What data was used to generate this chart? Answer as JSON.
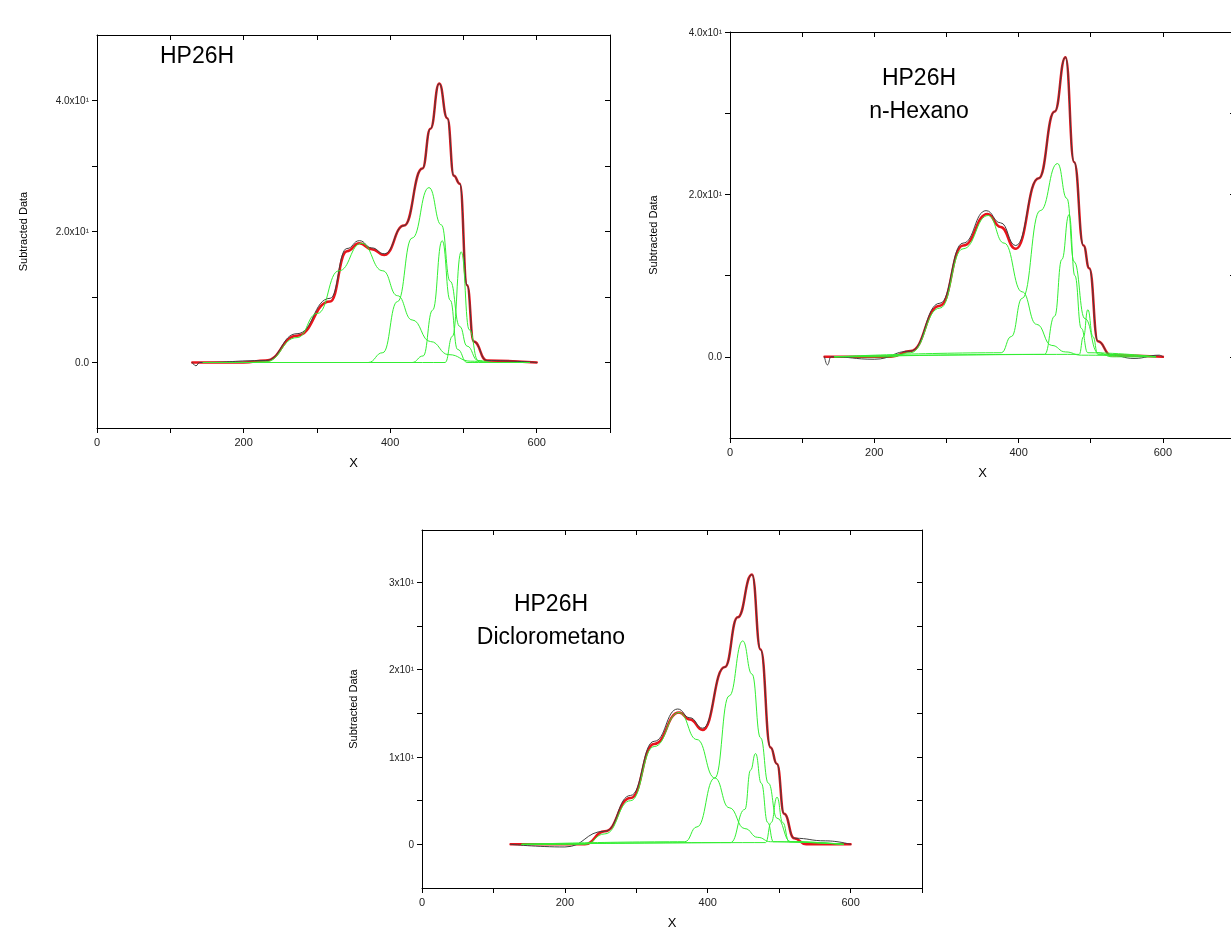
{
  "chart_data": [
    {
      "type": "line",
      "title": "HP26H",
      "xlabel": "X",
      "ylabel": "Subtracted Data",
      "xlim": [
        0,
        700
      ],
      "ylim": [
        -10,
        50
      ],
      "xticks": [
        0,
        {
          "value": 100,
          "label": null
        },
        200,
        {
          "value": 300,
          "label": null
        },
        400,
        {
          "value": 500,
          "label": null
        },
        600,
        {
          "value": 700,
          "label": null
        }
      ],
      "yticks": [
        {
          "value": 0,
          "label": "0.0"
        },
        {
          "value": 10,
          "label": null
        },
        {
          "value": 20,
          "label": "2.0x10¹"
        },
        {
          "value": 30,
          "label": null
        },
        {
          "value": 40,
          "label": "4.0x10¹"
        }
      ],
      "series": [
        {
          "color": "#e8141c",
          "x": [
            130,
            200,
            230,
            273,
            318,
            341,
            358,
            375,
            392,
            419,
            444,
            455,
            467,
            478,
            487,
            495,
            505,
            514,
            532,
            600
          ],
          "values": [
            0,
            0,
            0.3,
            4.1,
            9.3,
            17,
            18.2,
            17.3,
            16.4,
            20.9,
            29.6,
            35.7,
            42.6,
            37.3,
            28.5,
            27.3,
            11.8,
            3.2,
            0.3,
            0
          ]
        },
        {
          "color": "#404040",
          "x": [
            130,
            135,
            140,
            230,
            273,
            318,
            341,
            358,
            375,
            392,
            419,
            444,
            455,
            467,
            478,
            487,
            495,
            505,
            514,
            532,
            600
          ],
          "values": [
            0,
            -0.5,
            0,
            0.3,
            4.4,
            9.8,
            17.4,
            18.6,
            17.5,
            16.6,
            20.9,
            29.6,
            35.7,
            42.6,
            37.3,
            28.5,
            27.3,
            11.8,
            3.2,
            0.3,
            0
          ]
        },
        {
          "color": "#33ee33",
          "x": [
            145,
            200,
            230,
            273,
            301,
            330,
            361,
            390,
            410,
            430,
            455,
            480,
            510,
            540,
            590
          ],
          "values": [
            0,
            0,
            0.1,
            3.8,
            7.5,
            14,
            18.2,
            14,
            10.2,
            6.5,
            3.2,
            1.2,
            0.2,
            0,
            0
          ]
        },
        {
          "color": "#33ee33",
          "x": [
            145,
            370,
            390,
            410,
            430,
            453,
            470,
            482,
            495,
            505,
            520,
            540,
            590
          ],
          "values": [
            0,
            0,
            1.5,
            9.3,
            19,
            26.7,
            21,
            12.4,
            5.5,
            2.5,
            0.3,
            0,
            0
          ]
        },
        {
          "color": "#33ee33",
          "x": [
            145,
            430,
            445,
            458,
            471,
            482,
            492,
            505,
            590
          ],
          "values": [
            0,
            0,
            1,
            8,
            18.6,
            9.5,
            2,
            0,
            0
          ]
        },
        {
          "color": "#33ee33",
          "x": [
            145,
            475,
            485,
            497,
            508,
            520,
            530,
            590
          ],
          "values": [
            0,
            0,
            4,
            16.9,
            5,
            0.3,
            0,
            0
          ]
        }
      ]
    },
    {
      "type": "line",
      "title": "HP26H",
      "subtitle": "n-Hexano",
      "xlabel": "X",
      "ylabel": "Subtracted Data",
      "xlim": [
        0,
        700
      ],
      "ylim": [
        -10,
        40
      ],
      "xticks": [
        0,
        {
          "value": 100,
          "label": null
        },
        200,
        {
          "value": 300,
          "label": null
        },
        400,
        {
          "value": 500,
          "label": null
        },
        600,
        {
          "value": 700,
          "label": null
        }
      ],
      "yticks": [
        {
          "value": 0,
          "label": "0.0"
        },
        {
          "value": 10,
          "label": null
        },
        {
          "value": 20,
          "label": "2.0x10¹"
        },
        {
          "value": 30,
          "label": null
        },
        {
          "value": 40,
          "label": "4.0x10¹"
        }
      ],
      "series": [
        {
          "color": "#e8141c",
          "x": [
            131,
            223,
            250,
            291,
            323,
            357,
            375,
            396,
            428,
            450,
            465,
            477,
            490,
            498,
            510,
            528,
            600
          ],
          "values": [
            0,
            0,
            0.7,
            6.3,
            13.7,
            17.6,
            16,
            13.3,
            22,
            30.2,
            36.9,
            24,
            13.7,
            10.9,
            1.9,
            0.2,
            0
          ]
        },
        {
          "color": "#404040",
          "x": [
            131,
            135,
            140,
            200,
            250,
            291,
            323,
            355,
            375,
            396,
            428,
            450,
            465,
            477,
            490,
            498,
            510,
            528,
            560,
            595,
            600
          ],
          "values": [
            0,
            -1,
            0,
            -0.3,
            0.7,
            6.6,
            14,
            18,
            16.5,
            13.7,
            22,
            30.2,
            36.9,
            24,
            13.7,
            10.9,
            1.9,
            0.2,
            -0.2,
            0.2,
            0
          ]
        },
        {
          "color": "#33ee33",
          "x": [
            145,
            223,
            250,
            291,
            323,
            358,
            380,
            405,
            425,
            446,
            465,
            487,
            590
          ],
          "values": [
            0,
            0,
            0.5,
            6,
            13.3,
            17.4,
            14,
            8,
            4,
            1.4,
            0.6,
            0.2,
            0
          ]
        },
        {
          "color": "#33ee33",
          "x": [
            145,
            376,
            390,
            405,
            430,
            454,
            467,
            477,
            492,
            510,
            530,
            590
          ],
          "values": [
            0,
            0.5,
            2.5,
            7.2,
            18,
            23.8,
            19.5,
            11.7,
            4.7,
            0.5,
            0,
            0
          ]
        },
        {
          "color": "#33ee33",
          "x": [
            145,
            436,
            450,
            460,
            470,
            478,
            487,
            496,
            590
          ],
          "values": [
            0,
            0.3,
            5,
            12,
            17.5,
            10,
            3.5,
            0.5,
            0
          ]
        },
        {
          "color": "#33ee33",
          "x": [
            145,
            484,
            490,
            496,
            503,
            510,
            590
          ],
          "values": [
            0,
            0.3,
            2.5,
            5.8,
            2.5,
            0.3,
            0
          ]
        }
      ]
    },
    {
      "type": "line",
      "title": "HP26H",
      "subtitle": "Diclorometano",
      "xlabel": "X",
      "ylabel": "Subtracted Data",
      "xlim": [
        0,
        700
      ],
      "ylim": [
        -5,
        36
      ],
      "xticks": [
        0,
        {
          "value": 100,
          "label": null
        },
        200,
        {
          "value": 300,
          "label": null
        },
        400,
        {
          "value": 500,
          "label": null
        },
        600,
        {
          "value": 700,
          "label": null
        }
      ],
      "yticks": [
        0,
        {
          "value": 5,
          "label": null
        },
        {
          "value": 10,
          "label": "1x10¹"
        },
        {
          "value": 15,
          "label": null
        },
        {
          "value": 20,
          "label": "2x10¹"
        },
        {
          "value": 25,
          "label": null
        },
        {
          "value": 30,
          "label": "3x10¹"
        }
      ],
      "series": [
        {
          "color": "#e8141c",
          "x": [
            124,
            228,
            256,
            292,
            325,
            360,
            375,
            393,
            424,
            442,
            462,
            474,
            488,
            497,
            507,
            521,
            538,
            600
          ],
          "values": [
            0,
            0,
            1.5,
            5.3,
            11.5,
            15.1,
            14.3,
            13.1,
            20.3,
            26,
            30.9,
            22.3,
            11.1,
            9.2,
            3.5,
            0.7,
            0,
            0
          ]
        },
        {
          "color": "#404040",
          "x": [
            124,
            200,
            256,
            292,
            325,
            358,
            375,
            393,
            424,
            442,
            462,
            474,
            488,
            497,
            507,
            521,
            565,
            600
          ],
          "values": [
            0,
            -0.3,
            1.5,
            5.6,
            11.8,
            15.5,
            14.5,
            13.3,
            20.3,
            26,
            30.9,
            22.3,
            11.1,
            9.2,
            3.5,
            0.7,
            0.4,
            0
          ]
        },
        {
          "color": "#33ee33",
          "x": [
            140,
            228,
            256,
            292,
            325,
            360,
            385,
            410,
            430,
            452,
            470,
            488,
            590
          ],
          "values": [
            0,
            0,
            1.2,
            5,
            11.2,
            15.1,
            12,
            7.6,
            4.2,
            1.8,
            0.8,
            0.3,
            0
          ]
        },
        {
          "color": "#33ee33",
          "x": [
            140,
            368,
            385,
            410,
            430,
            449,
            462,
            474,
            485,
            497,
            516,
            590
          ],
          "values": [
            0,
            0.3,
            2,
            7.6,
            17,
            23.3,
            19.5,
            12.2,
            7,
            3,
            0.3,
            0
          ]
        },
        {
          "color": "#33ee33",
          "x": [
            140,
            432,
            452,
            460,
            467,
            475,
            484,
            492,
            590
          ],
          "values": [
            0,
            0.2,
            4,
            8.5,
            10.4,
            7,
            2.5,
            0.3,
            0
          ]
        },
        {
          "color": "#33ee33",
          "x": [
            140,
            481,
            489,
            497,
            505,
            514,
            590
          ],
          "values": [
            0,
            0.2,
            2.5,
            5.4,
            2.5,
            0.3,
            0
          ]
        }
      ]
    }
  ]
}
